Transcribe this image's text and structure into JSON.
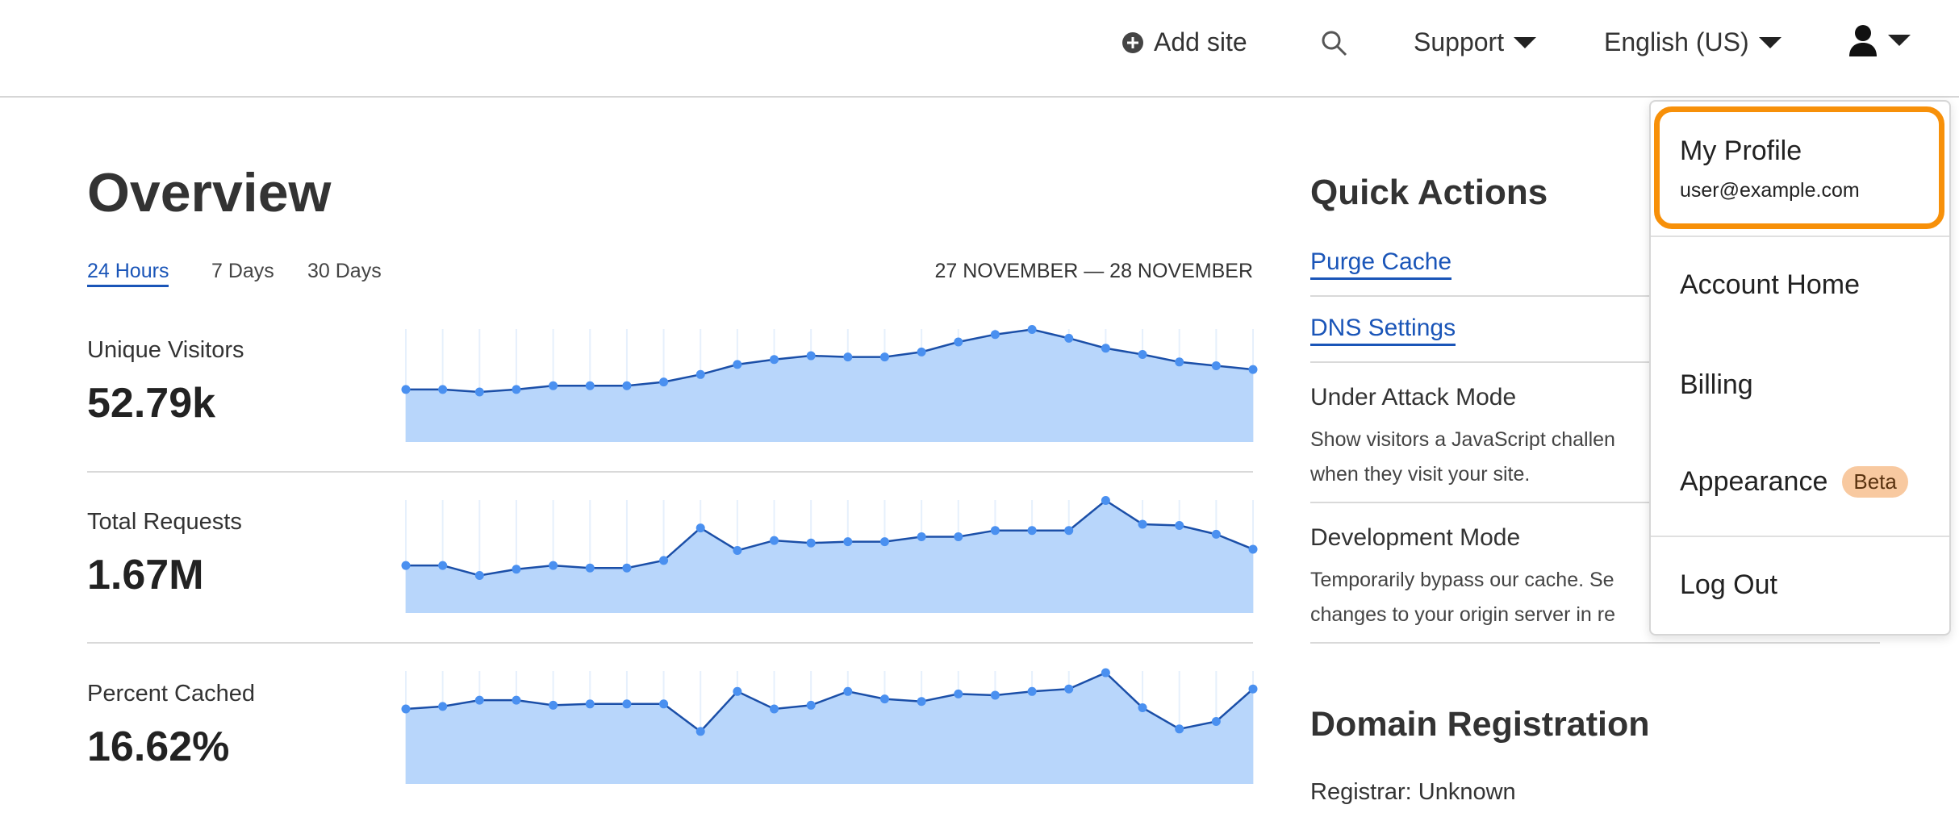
{
  "header": {
    "add_site": "Add site",
    "support": "Support",
    "language": "English (US)"
  },
  "overview": {
    "title": "Overview",
    "tabs": [
      {
        "label": "24 Hours",
        "active": true
      },
      {
        "label": "7 Days"
      },
      {
        "label": "30 Days"
      }
    ],
    "date_range": "27 NOVEMBER — 28 NOVEMBER",
    "metrics": [
      {
        "label": "Unique Visitors",
        "value": "52.79k"
      },
      {
        "label": "Total Requests",
        "value": "1.67M"
      },
      {
        "label": "Percent Cached",
        "value": "16.62%"
      }
    ]
  },
  "chart_data": [
    {
      "type": "area",
      "values": [
        42,
        42,
        40,
        42,
        45,
        45,
        45,
        48,
        54,
        62,
        66,
        69,
        68,
        68,
        72,
        80,
        86,
        90,
        83,
        75,
        70,
        64,
        61,
        58
      ]
    },
    {
      "type": "area",
      "values": [
        38,
        38,
        30,
        35,
        38,
        36,
        36,
        42,
        68,
        50,
        58,
        56,
        57,
        57,
        61,
        61,
        66,
        66,
        66,
        90,
        71,
        70,
        63,
        51
      ]
    },
    {
      "type": "area",
      "values": [
        60,
        62,
        67,
        67,
        63,
        64,
        64,
        64,
        42,
        74,
        60,
        63,
        74,
        68,
        66,
        72,
        71,
        74,
        76,
        89,
        61,
        44,
        50,
        76
      ]
    }
  ],
  "quick_actions": {
    "title": "Quick Actions",
    "purge_cache": "Purge Cache",
    "dns_settings": "DNS Settings",
    "under_attack_title": "Under Attack Mode",
    "under_attack_desc_1": "Show visitors a JavaScript challen",
    "under_attack_desc_2": "when they visit your site.",
    "dev_mode_title": "Development Mode",
    "dev_mode_desc_1": "Temporarily bypass our cache. Se",
    "dev_mode_desc_2": "changes to your origin server in re"
  },
  "domain_registration": {
    "title": "Domain Registration",
    "registrar": "Registrar: Unknown"
  },
  "user_menu": {
    "my_profile": "My Profile",
    "email": "user@example.com",
    "account_home": "Account Home",
    "billing": "Billing",
    "appearance": "Appearance",
    "beta": "Beta",
    "log_out": "Log Out"
  },
  "colors": {
    "accent": "#1a55b8",
    "chart_fill": "#b8d6fb",
    "chart_line": "#1b4fa8",
    "chart_point": "#4a90f0",
    "focus_ring": "#f79009"
  }
}
